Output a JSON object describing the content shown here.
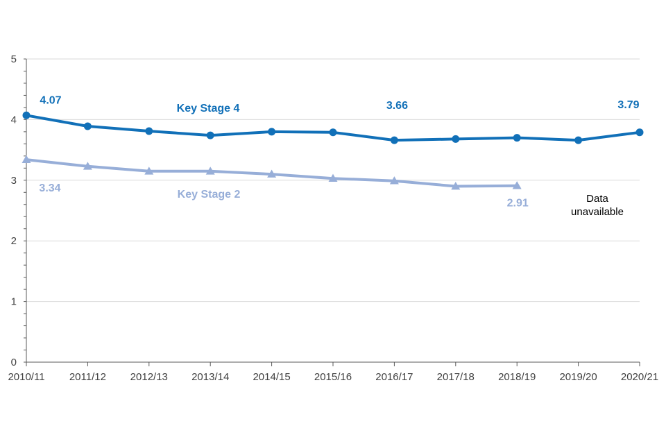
{
  "chart_data": {
    "type": "line",
    "title": "",
    "xlabel": "",
    "ylabel": "",
    "ylim": [
      0,
      5
    ],
    "yticks": [
      0,
      1,
      2,
      3,
      4,
      5
    ],
    "grid": true,
    "categories": [
      "2010/11",
      "2011/12",
      "2012/13",
      "2013/14",
      "2014/15",
      "2015/16",
      "2016/17",
      "2017/18",
      "2018/19",
      "2019/20",
      "2020/21"
    ],
    "series": [
      {
        "name": "Key Stage 4",
        "color": "#1170B8",
        "marker": "circle",
        "values": [
          4.07,
          3.89,
          3.81,
          3.74,
          3.8,
          3.79,
          3.66,
          3.68,
          3.7,
          3.66,
          3.79
        ]
      },
      {
        "name": "Key Stage 2",
        "color": "#97AED8",
        "marker": "triangle",
        "values": [
          3.34,
          3.23,
          3.15,
          3.15,
          3.1,
          3.03,
          2.99,
          2.9,
          2.91,
          null,
          null
        ]
      }
    ],
    "data_labels": [
      {
        "series": 0,
        "index": 0,
        "text": "4.07"
      },
      {
        "series": 0,
        "index": 6,
        "text": "3.66"
      },
      {
        "series": 0,
        "index": 10,
        "text": "3.79"
      },
      {
        "series": 1,
        "index": 0,
        "text": "3.34"
      },
      {
        "series": 1,
        "index": 8,
        "text": "2.91"
      }
    ],
    "annotations": [
      "Data",
      "unavailable"
    ]
  }
}
